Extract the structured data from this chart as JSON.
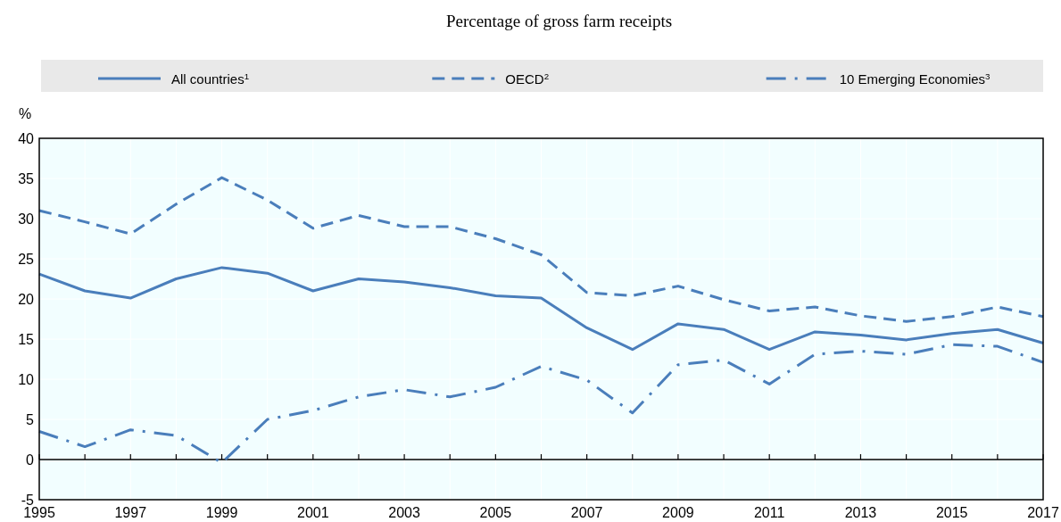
{
  "chart_data": {
    "type": "line",
    "title": "Percentage of gross farm receipts",
    "ylabel": "%",
    "x": [
      1995,
      1996,
      1997,
      1998,
      1999,
      2000,
      2001,
      2002,
      2003,
      2004,
      2005,
      2006,
      2007,
      2008,
      2009,
      2010,
      2011,
      2012,
      2013,
      2014,
      2015,
      2016,
      2017
    ],
    "series": [
      {
        "name": "All countries$^{1}$",
        "color": "#4a7ebb",
        "line_style": "solid",
        "values": [
          23.1,
          21.0,
          20.1,
          22.5,
          23.9,
          23.2,
          21.0,
          22.5,
          22.1,
          21.4,
          20.4,
          20.1,
          16.4,
          13.7,
          16.9,
          16.2,
          13.7,
          15.9,
          15.5,
          14.9,
          15.7,
          16.2,
          14.5
        ]
      },
      {
        "name": "OECD$^{2}$",
        "color": "#4a7ebb",
        "line_style": "dashed",
        "values": [
          31.0,
          29.6,
          28.1,
          31.8,
          35.1,
          32.3,
          28.8,
          30.4,
          29.0,
          29.0,
          27.5,
          25.5,
          20.8,
          20.4,
          21.6,
          19.9,
          18.5,
          19.0,
          17.9,
          17.2,
          17.8,
          19.0,
          17.8
        ]
      },
      {
        "name": "10 Emerging Economies$^{3}$",
        "color": "#4a7ebb",
        "line_style": "dashdot",
        "values": [
          3.5,
          1.6,
          3.7,
          3.0,
          -0.4,
          5.0,
          6.1,
          7.8,
          8.7,
          7.8,
          9.0,
          11.6,
          9.9,
          5.8,
          11.8,
          12.4,
          9.4,
          13.1,
          13.5,
          13.1,
          14.3,
          14.1,
          12.1
        ]
      }
    ],
    "xlim": [
      1995,
      2017
    ],
    "xticks": [
      1995,
      {
        "value": 1996,
        "label": null
      },
      1997,
      {
        "value": 1998,
        "label": null
      },
      1999,
      {
        "value": 2000,
        "label": null
      },
      2001,
      {
        "value": 2002,
        "label": null
      },
      2003,
      {
        "value": 2004,
        "label": null
      },
      2005,
      {
        "value": 2006,
        "label": null
      },
      2007,
      {
        "value": 2008,
        "label": null
      },
      2009,
      {
        "value": 2010,
        "label": null
      },
      2011,
      {
        "value": 2012,
        "label": null
      },
      2013,
      {
        "value": 2014,
        "label": null
      },
      2015,
      {
        "value": 2016,
        "label": null
      },
      2017
    ],
    "ylim": [
      -5,
      40
    ],
    "yticks": [
      -5,
      0,
      5,
      10,
      15,
      20,
      25,
      30,
      35,
      40
    ],
    "ref_lines": [
      {
        "axis": "y",
        "value": 0,
        "label": null,
        "color": "#000000"
      }
    ],
    "grid": true,
    "legend": "top",
    "marker": "none"
  }
}
